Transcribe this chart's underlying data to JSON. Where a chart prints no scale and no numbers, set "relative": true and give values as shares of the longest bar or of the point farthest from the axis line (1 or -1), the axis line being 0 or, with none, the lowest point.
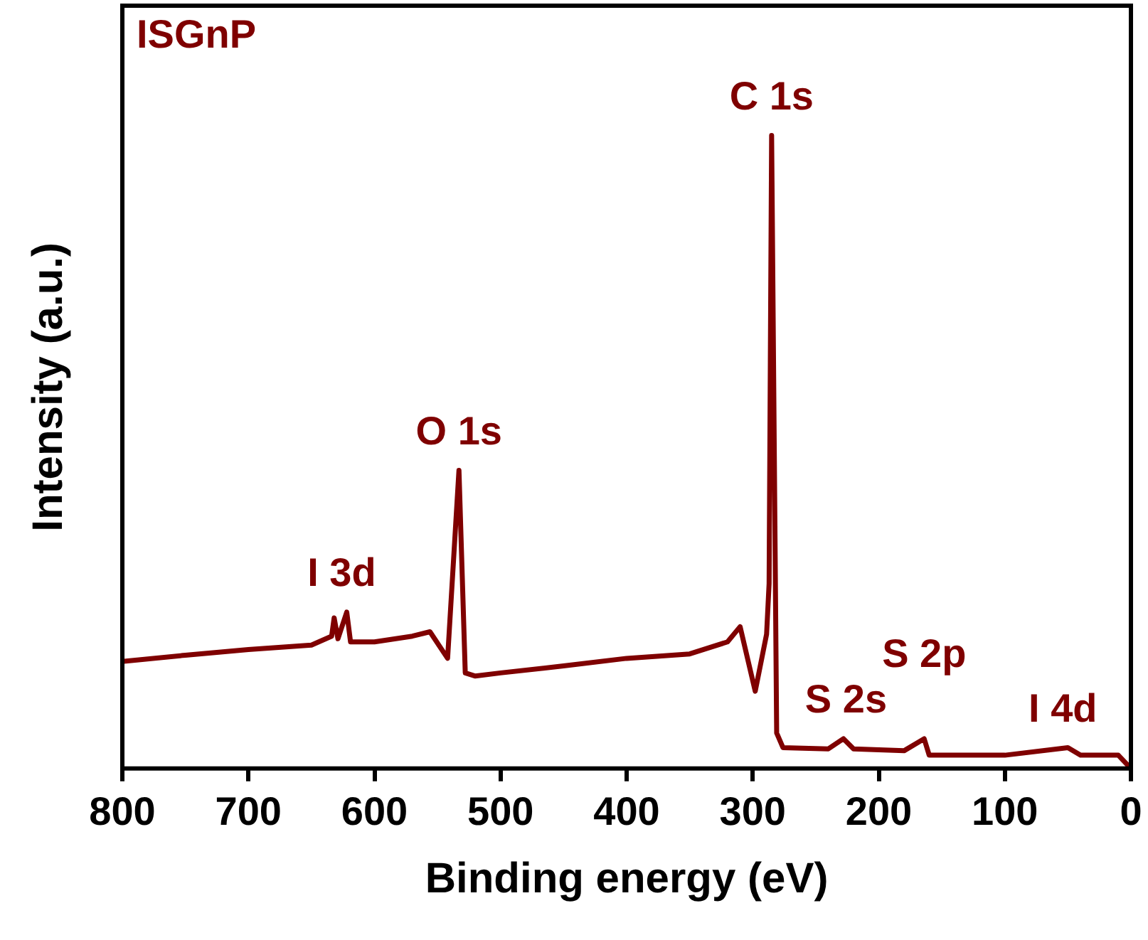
{
  "chart_data": {
    "type": "line",
    "title": "ISGnP",
    "xlabel": "Binding energy (eV)",
    "ylabel": "Intensity (a.u.)",
    "relative": true,
    "color": "#7f0000",
    "marker": "none",
    "legend": false,
    "grid": false,
    "xlim": [
      800,
      0
    ],
    "xticks": [
      0,
      100,
      200,
      300,
      400,
      500,
      600,
      700,
      800
    ],
    "x": [
      800,
      750,
      700,
      650,
      634,
      632,
      629,
      622,
      619,
      600,
      570,
      556,
      542,
      533,
      528,
      520,
      500,
      450,
      400,
      350,
      320,
      310,
      298,
      289,
      287,
      285,
      281,
      276,
      240,
      228,
      220,
      180,
      164,
      160,
      100,
      50,
      40,
      10,
      0
    ],
    "values": [
      0.169,
      0.179,
      0.188,
      0.195,
      0.209,
      0.238,
      0.205,
      0.247,
      0.2,
      0.2,
      0.209,
      0.216,
      0.174,
      0.471,
      0.151,
      0.146,
      0.151,
      0.162,
      0.174,
      0.181,
      0.2,
      0.224,
      0.122,
      0.212,
      0.292,
      1.0,
      0.056,
      0.033,
      0.031,
      0.047,
      0.031,
      0.028,
      0.047,
      0.021,
      0.021,
      0.033,
      0.021,
      0.021,
      0
    ],
    "annotations": [
      {
        "text": "C 1s",
        "x": 285,
        "y": 1.0
      },
      {
        "text": "O 1s",
        "x": 533,
        "y": 0.471
      },
      {
        "text": "I 3d",
        "x": 626,
        "y": 0.247
      },
      {
        "text": "S 2s",
        "x": 226,
        "y": 0.047
      },
      {
        "text": "S 2p",
        "x": 164,
        "y": 0.047
      },
      {
        "text": "I 4d",
        "x": 54,
        "y": 0.033
      }
    ]
  }
}
